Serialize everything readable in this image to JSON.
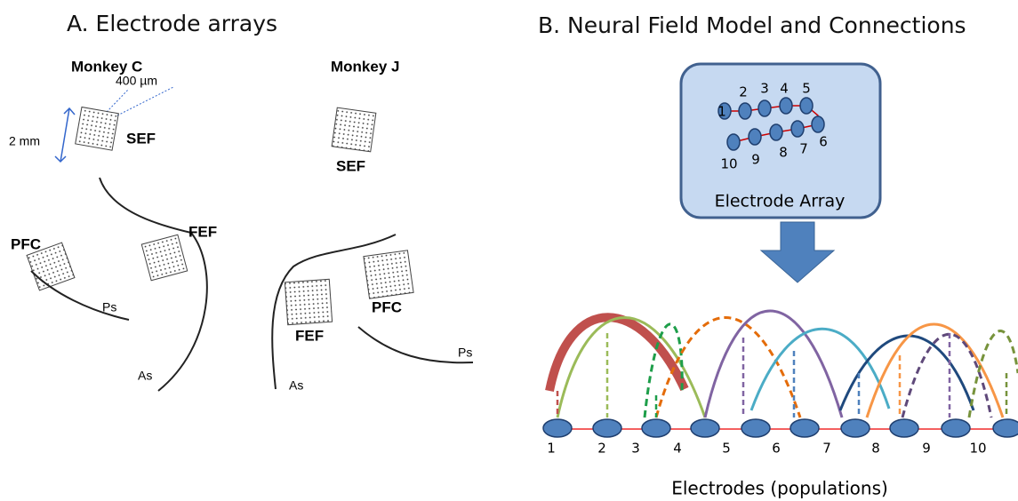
{
  "panel_a": {
    "title": "A. Electrode arrays",
    "monkey_c": {
      "label": "Monkey C",
      "array_size": "400 µm",
      "array_span": "2 mm",
      "sef": "SEF",
      "pfc": "PFC",
      "fef": "FEF",
      "ps": "Ps",
      "as": "As"
    },
    "monkey_j": {
      "label": "Monkey J",
      "sef": "SEF",
      "fef": "FEF",
      "pfc": "PFC",
      "ps": "Ps",
      "as": "As"
    }
  },
  "panel_b": {
    "title": "B. Neural Field Model and Connections",
    "array_label": "Electrode Array",
    "array_numbers": [
      "1",
      "2",
      "3",
      "4",
      "5",
      "6",
      "7",
      "8",
      "9",
      "10"
    ],
    "electrode_numbers": [
      "1",
      "2",
      "3",
      "4",
      "5",
      "6",
      "7",
      "8",
      "9",
      "10"
    ],
    "axis_label": "Electrodes (populations)"
  }
}
